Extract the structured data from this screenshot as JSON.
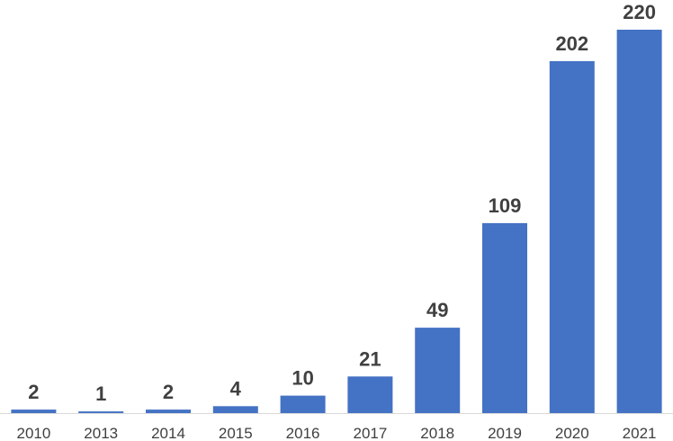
{
  "chart_data": {
    "type": "bar",
    "categories": [
      "2010",
      "2013",
      "2014",
      "2015",
      "2016",
      "2017",
      "2018",
      "2019",
      "2020",
      "2021"
    ],
    "values": [
      2,
      1,
      2,
      4,
      10,
      21,
      49,
      109,
      202,
      220
    ],
    "title": "",
    "xlabel": "",
    "ylabel": "",
    "ylim": [
      0,
      220
    ],
    "grid": false,
    "legend": "none",
    "bar_color": "#4472C4",
    "data_labels": true
  }
}
